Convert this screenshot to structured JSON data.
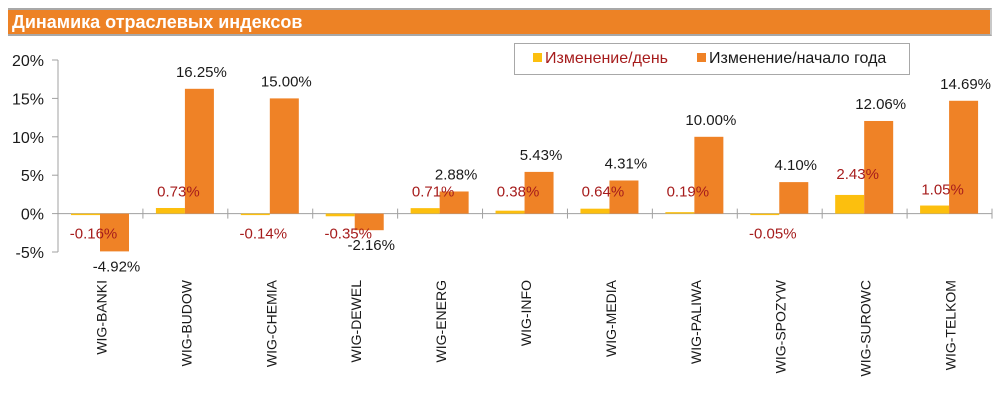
{
  "header": {
    "title": "Динамика отраслевых индексов"
  },
  "colors": {
    "header_bg": "#ed8225",
    "series_day": "#fcbf0e",
    "series_ytd": "#ef8226",
    "label_day": "#a61c1c",
    "label_ytd": "#1a1a1a",
    "axis": "#a0a0a0"
  },
  "chart_data": {
    "type": "bar",
    "title": "Динамика отраслевых индексов",
    "xlabel": "",
    "ylabel": "",
    "ylim": [
      -5,
      20
    ],
    "yticks": [
      -5,
      0,
      5,
      10,
      15,
      20
    ],
    "ytick_labels": [
      "-5%",
      "0%",
      "5%",
      "10%",
      "15%",
      "20%"
    ],
    "grid": false,
    "legend_position": "top-right",
    "categories": [
      "WIG-BANKI",
      "WIG-BUDOW",
      "WIG-CHEMIA",
      "WIG-DEWEL",
      "WIG-ENERG",
      "WIG-INFO",
      "WIG-MEDIA",
      "WIG-PALIWA",
      "WIG-SPOZYW",
      "WIG-SUROWC",
      "WIG-TELKOM"
    ],
    "series": [
      {
        "name": "Изменение/день",
        "values": [
          -0.16,
          0.73,
          -0.14,
          -0.35,
          0.71,
          0.38,
          0.64,
          0.19,
          -0.05,
          2.43,
          1.05
        ],
        "labels": [
          "-0.16%",
          "0.73%",
          "-0.14%",
          "-0.35%",
          "0.71%",
          "0.38%",
          "0.64%",
          "0.19%",
          "-0.05%",
          "2.43%",
          "1.05%"
        ]
      },
      {
        "name": "Изменение/начало года",
        "values": [
          -4.92,
          16.25,
          15.0,
          -2.16,
          2.88,
          5.43,
          4.31,
          10.0,
          4.1,
          12.06,
          14.69
        ],
        "labels": [
          "-4.92%",
          "16.25%",
          "15.00%",
          "-2.16%",
          "2.88%",
          "5.43%",
          "4.31%",
          "10.00%",
          "4.10%",
          "12.06%",
          "14.69%"
        ]
      }
    ]
  }
}
